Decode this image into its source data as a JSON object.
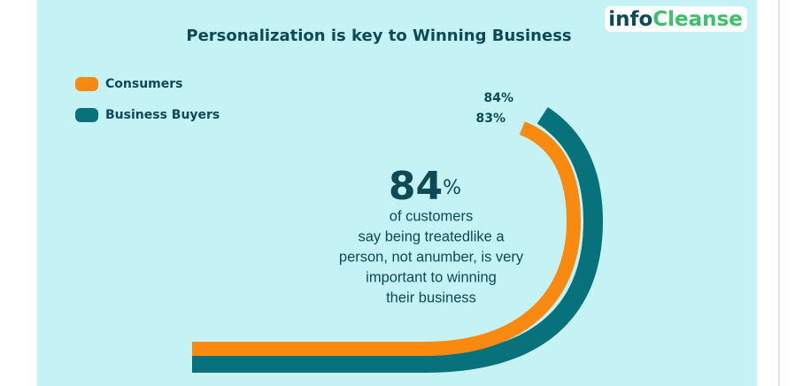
{
  "brand": {
    "prefix": "info",
    "suffix": "Cleanse"
  },
  "chart_data": {
    "type": "curved-bar",
    "title": "Personalization is key to Winning Business",
    "series": [
      {
        "name": "Consumers",
        "color": "#f98a0f",
        "values": [
          83
        ],
        "value_labels": [
          "83%"
        ]
      },
      {
        "name": "Business Buyers",
        "color": "#08727c",
        "values": [
          84
        ],
        "value_labels": [
          "84%"
        ]
      }
    ],
    "highlight_value": 84,
    "highlight_unit": "%",
    "description": [
      "of customers",
      "say being treatedlike a",
      "person, not anumber, is very",
      "important to winning",
      "their business"
    ]
  }
}
